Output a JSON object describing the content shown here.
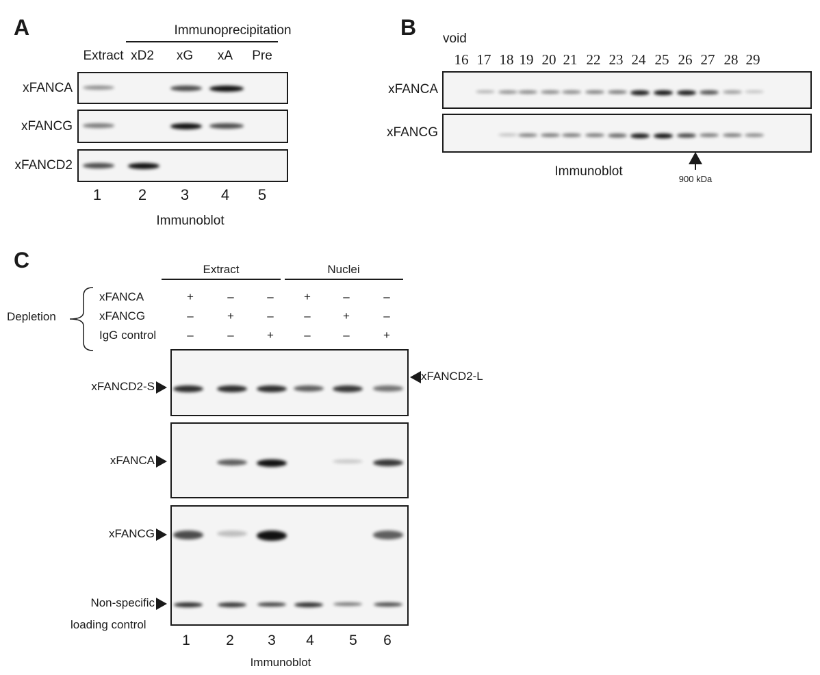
{
  "panel_a": {
    "label": "A",
    "header": "Immunoprecipitation",
    "lanes": [
      "Extract",
      "xD2",
      "xG",
      "xA",
      "Pre"
    ],
    "rows": [
      {
        "label": "xFANCA",
        "band_intensity": [
          0.35,
          0,
          0.7,
          1.0,
          0
        ]
      },
      {
        "label": "xFANCG",
        "band_intensity": [
          0.45,
          0,
          1.0,
          0.7,
          0
        ]
      },
      {
        "label": "xFANCD2",
        "band_intensity": [
          0.7,
          1.0,
          0,
          0,
          0
        ]
      }
    ],
    "lane_numbers": [
      "1",
      "2",
      "3",
      "4",
      "5"
    ],
    "footer": "Immunoblot"
  },
  "panel_b": {
    "label": "B",
    "void_label": "void",
    "fractions": [
      "16",
      "17",
      "18",
      "19",
      "20",
      "21",
      "22",
      "23",
      "24",
      "25",
      "26",
      "27",
      "28",
      "29"
    ],
    "rows": [
      {
        "label": "xFANCA",
        "band_intensity": [
          0,
          0.2,
          0.35,
          0.4,
          0.4,
          0.4,
          0.45,
          0.5,
          0.95,
          1.0,
          0.95,
          0.7,
          0.3,
          0.1
        ]
      },
      {
        "label": "xFANCG",
        "band_intensity": [
          0,
          0,
          0.1,
          0.45,
          0.5,
          0.5,
          0.5,
          0.55,
          0.95,
          1.0,
          0.75,
          0.5,
          0.5,
          0.4
        ]
      }
    ],
    "footer": "Immunoblot",
    "marker": "900 kDa"
  },
  "panel_c": {
    "label": "C",
    "groups": [
      "Extract",
      "Nuclei"
    ],
    "depletion_label": "Depletion",
    "depletion_rows": [
      {
        "label": "xFANCA",
        "values": [
          "+",
          "–",
          "–",
          "+",
          "–",
          "–"
        ]
      },
      {
        "label": "xFANCG",
        "values": [
          "–",
          "+",
          "–",
          "–",
          "+",
          "–"
        ]
      },
      {
        "label": "IgG control",
        "values": [
          "–",
          "–",
          "+",
          "–",
          "–",
          "+"
        ]
      }
    ],
    "blots": [
      {
        "label": "xFANCD2-S",
        "right_label": "xFANCD2-L",
        "band_intensity": [
          0.85,
          0.85,
          0.85,
          0.6,
          0.8,
          0.5
        ]
      },
      {
        "label": "xFANCA",
        "band_intensity": [
          0,
          0.6,
          1.0,
          0,
          0.05,
          0.8
        ]
      },
      {
        "label": "xFANCG",
        "band_intensity": [
          0.7,
          0.1,
          1.0,
          0,
          0,
          0.6
        ]
      }
    ],
    "loading_control_label": [
      "Non-specific",
      "loading control"
    ],
    "loading_control_intensity": [
      0.85,
      0.8,
      0.75,
      0.85,
      0.5,
      0.7
    ],
    "lane_numbers": [
      "1",
      "2",
      "3",
      "4",
      "5",
      "6"
    ],
    "footer": "Immunoblot"
  }
}
